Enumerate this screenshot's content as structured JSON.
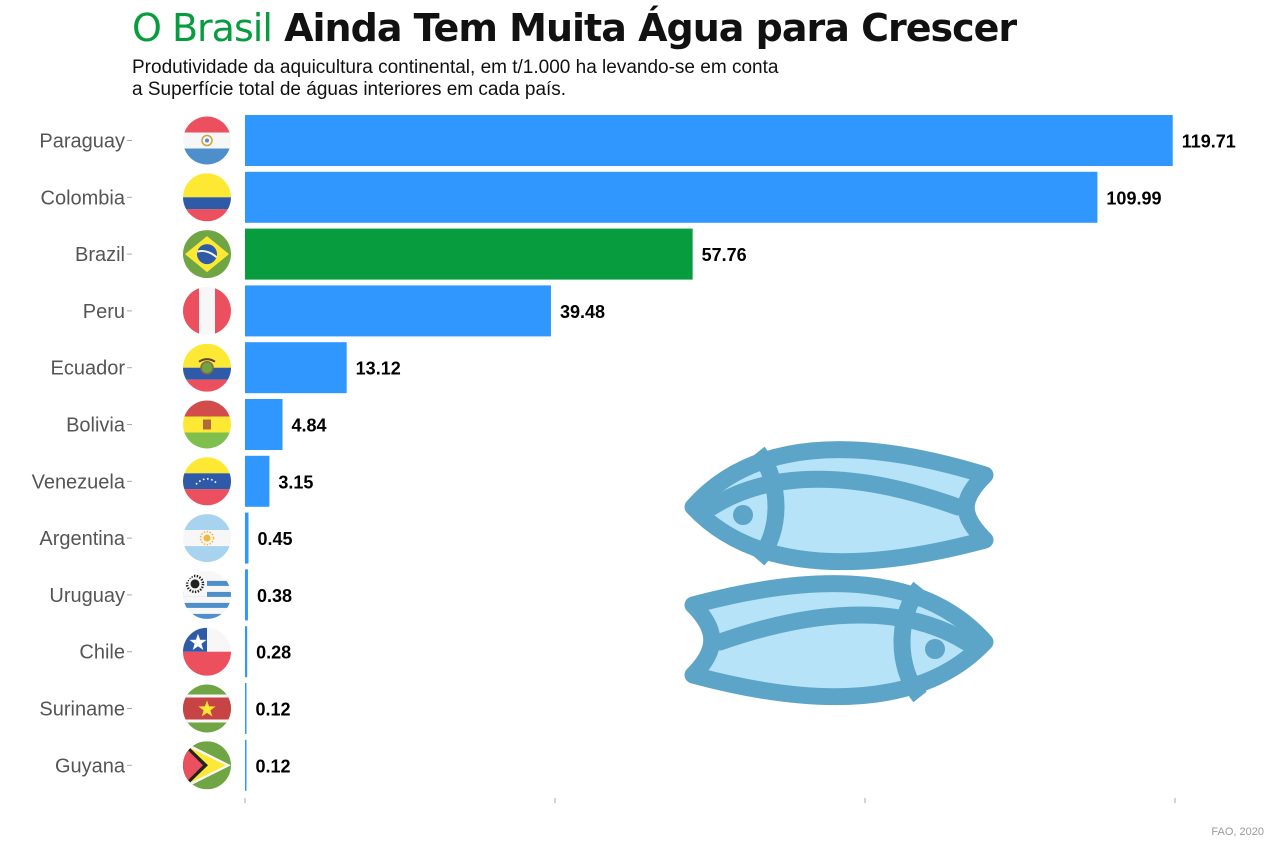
{
  "header": {
    "title_highlight": "O Brasil",
    "title_rest": "Ainda Tem Muita Água para Crescer",
    "subtitle_line1": "Produtividade da aquicultura continental, em t/1.000 ha levando-se em conta",
    "subtitle_line2": "a Superfície total de águas interiores em cada país."
  },
  "source": "FAO, 2020",
  "colors": {
    "bar": "#3097fe",
    "highlight": "#079d3f",
    "fish_stroke": "#5da5c8",
    "fish_fill": "#b6e3f7"
  },
  "decoration": {
    "icon": "two-fish-icon"
  },
  "chart_data": {
    "type": "bar",
    "orientation": "horizontal",
    "categories": [
      "Paraguay",
      "Colombia",
      "Brazil",
      "Peru",
      "Ecuador",
      "Bolivia",
      "Venezuela",
      "Argentina",
      "Uruguay",
      "Chile",
      "Suriname",
      "Guyana"
    ],
    "values": [
      119.71,
      109.99,
      57.76,
      39.48,
      13.12,
      4.84,
      3.15,
      0.45,
      0.38,
      0.28,
      0.12,
      0.12
    ],
    "value_labels": [
      "119.71",
      "109.99",
      "57.76",
      "39.48",
      "13.12",
      "4.84",
      "3.15",
      "0.45",
      "0.38",
      "0.28",
      "0.12",
      "0.12"
    ],
    "highlight_category": "Brazil",
    "xlim": [
      0,
      120
    ],
    "x_ticks": [
      0,
      40,
      80,
      120
    ],
    "x_tick_labels_shown": false,
    "grid": false,
    "legend": "none",
    "category_icons": [
      "flag-paraguay-icon",
      "flag-colombia-icon",
      "flag-brazil-icon",
      "flag-peru-icon",
      "flag-ecuador-icon",
      "flag-bolivia-icon",
      "flag-venezuela-icon",
      "flag-argentina-icon",
      "flag-uruguay-icon",
      "flag-chile-icon",
      "flag-suriname-icon",
      "flag-guyana-icon"
    ]
  }
}
